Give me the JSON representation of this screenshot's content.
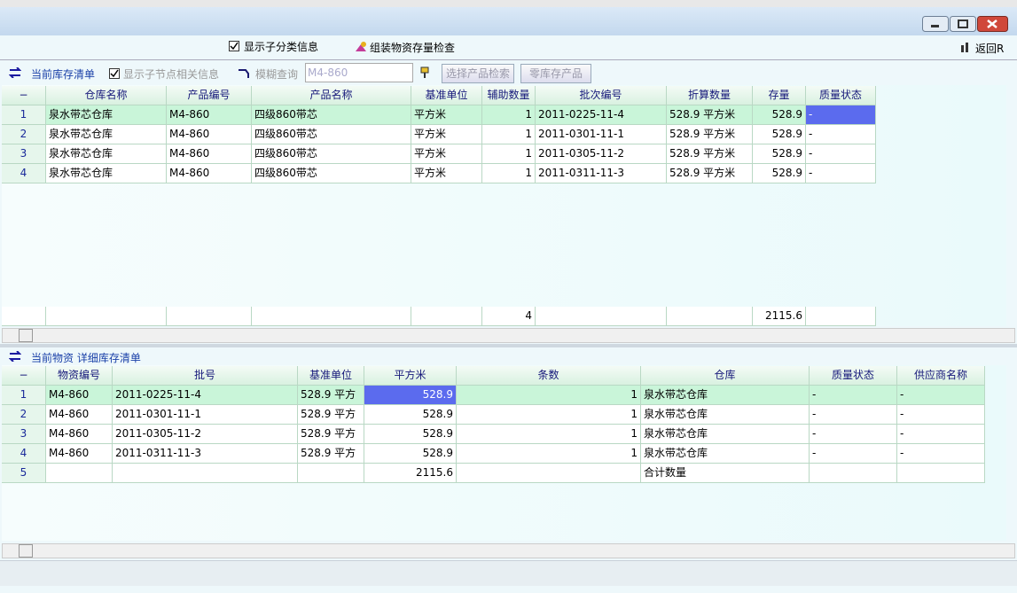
{
  "toolbar": {
    "show_subcategory": "显示子分类信息",
    "assembly_check": "组装物资存量检查",
    "back": "返回R"
  },
  "stock_panel": {
    "title": "当前库存清单",
    "show_child_nodes": "显示子节点相关信息",
    "fuzzy_query": "模糊查询",
    "query_input": "M4-860",
    "select_product": "选择产品检索",
    "zero_stock": "零库存产品",
    "grid": {
      "columns": [
        "−",
        "仓库名称",
        "产品编号",
        "产品名称",
        "基准单位",
        "辅助数量",
        "批次编号",
        "折算数量",
        "存量",
        "质量状态"
      ],
      "rows": [
        [
          1,
          "泉水带芯仓库",
          "M4-860",
          "四级860带芯",
          "平方米",
          1,
          "2011-0225-11-4",
          "528.9 平方米",
          528.9,
          "-"
        ],
        [
          2,
          "泉水带芯仓库",
          "M4-860",
          "四级860带芯",
          "平方米",
          1,
          "2011-0301-11-1",
          "528.9 平方米",
          528.9,
          "-"
        ],
        [
          3,
          "泉水带芯仓库",
          "M4-860",
          "四级860带芯",
          "平方米",
          1,
          "2011-0305-11-2",
          "528.9 平方米",
          528.9,
          "-"
        ],
        [
          4,
          "泉水带芯仓库",
          "M4-860",
          "四级860带芯",
          "平方米",
          1,
          "2011-0311-11-3",
          "528.9 平方米",
          528.9,
          "-"
        ]
      ],
      "totals": [
        null,
        null,
        null,
        null,
        null,
        4,
        null,
        null,
        2115.6,
        null
      ]
    }
  },
  "detail_panel": {
    "title": "当前物资 详细库存清单",
    "grid": {
      "columns": [
        "−",
        "物资编号",
        "批号",
        "基准单位",
        "平方米",
        "条数",
        "仓库",
        "质量状态",
        "供应商名称"
      ],
      "rows": [
        [
          1,
          "M4-860",
          "2011-0225-11-4",
          "528.9 平方",
          528.9,
          1,
          "泉水带芯仓库",
          "-",
          "-"
        ],
        [
          2,
          "M4-860",
          "2011-0301-11-1",
          "528.9 平方",
          528.9,
          1,
          "泉水带芯仓库",
          "-",
          "-"
        ],
        [
          3,
          "M4-860",
          "2011-0305-11-2",
          "528.9 平方",
          528.9,
          1,
          "泉水带芯仓库",
          "-",
          "-"
        ],
        [
          4,
          "M4-860",
          "2011-0311-11-3",
          "528.9 平方",
          528.9,
          1,
          "泉水带芯仓库",
          "-",
          "-"
        ],
        [
          5,
          null,
          null,
          null,
          2115.6,
          null,
          "合计数量",
          null,
          null
        ]
      ]
    }
  }
}
